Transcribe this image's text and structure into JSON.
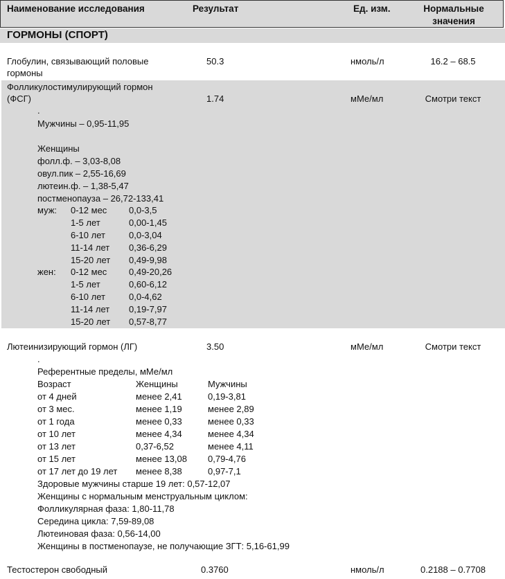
{
  "header": {
    "name": "Наименование исследования",
    "result": "Результат",
    "unit": "Ед. изм.",
    "normal_line1": "Нормальные",
    "normal_line2": "значения"
  },
  "section_title": "ГОРМОНЫ (СПОРТ)",
  "rows": {
    "shbg": {
      "name_line1": "Глобулин, связывающий половые",
      "name_line2": "гормоны",
      "result": "50.3",
      "unit": "нмоль/л",
      "normal": "16.2 – 68.5"
    },
    "fsh": {
      "name_line1": "Фолликулостимулирующий гормон",
      "name_line2": "(ФСГ)",
      "result": "1.74",
      "unit": "мМе/мл",
      "normal": "Смотри текст"
    },
    "lh": {
      "name": "Лютеинизирующий гормон (ЛГ)",
      "result": "3.50",
      "unit": "мМе/мл",
      "normal": "Смотри текст"
    },
    "testosterone": {
      "name": "Тестостерон свободный",
      "result": "0.3760",
      "unit": "нмоль/л",
      "normal": "0.2188 – 0.7708"
    }
  },
  "fsh_notes": {
    "dot": ".",
    "men": "Мужчины – 0,95-11,95",
    "women_title": "Женщины",
    "women": [
      "фолл.ф. – 3,03-8,08",
      "овул.пик – 2,55-16,69",
      "лютеин.ф. – 1,38-5,47",
      "постменопауза – 26,72-133,41"
    ],
    "male_label": "муж:",
    "female_label": "жен:",
    "male_table": [
      [
        "0-12 мес",
        "0,0-3,5"
      ],
      [
        "1-5 лет",
        "0,00-1,45"
      ],
      [
        "6-10 лет",
        "0,0-3,04"
      ],
      [
        "11-14 лет",
        "0,36-6,29"
      ],
      [
        "15-20 лет",
        "0,49-9,98"
      ]
    ],
    "female_table": [
      [
        "0-12 мес",
        "0,49-20,26"
      ],
      [
        "1-5 лет",
        "0,60-6,12"
      ],
      [
        "6-10 лет",
        "0,0-4,62"
      ],
      [
        "11-14 лет",
        "0,19-7,97"
      ],
      [
        "15-20 лет",
        "0,57-8,77"
      ]
    ]
  },
  "lh_notes": {
    "dot": ".",
    "title": "Референтные пределы, мМе/мл",
    "columns": [
      "Возраст",
      "Женщины",
      "Мужчины"
    ],
    "table": [
      [
        "от  4 дней",
        "менее 2,41",
        "0,19-3,81"
      ],
      [
        "от  3 мес.",
        "менее 1,19",
        "менее 2,89"
      ],
      [
        "от  1 года",
        "менее 0,33",
        "менее 0,33"
      ],
      [
        "от  10 лет",
        "менее 4,34",
        "менее 4,34"
      ],
      [
        "от  13 лет",
        "0,37-6,52",
        "менее 4,11"
      ],
      [
        "от  15 лет",
        "менее 13,08",
        "0,79-4,76"
      ],
      [
        "от  17 лет до 19 лет",
        "менее 8,38",
        "0,97-7,1"
      ]
    ],
    "lines": [
      "Здоровые мужчины старше 19 лет: 0,57-12,07",
      "Женщины с нормальным менструальным циклом:",
      "Фолликулярная фаза: 1,80-11,78",
      "Середина цикла: 7,59-89,08",
      "Лютеиновая фаза: 0,56-14,00",
      "Женщины в постменопаузе, не получающие ЗГТ: 5,16-61,99"
    ]
  }
}
